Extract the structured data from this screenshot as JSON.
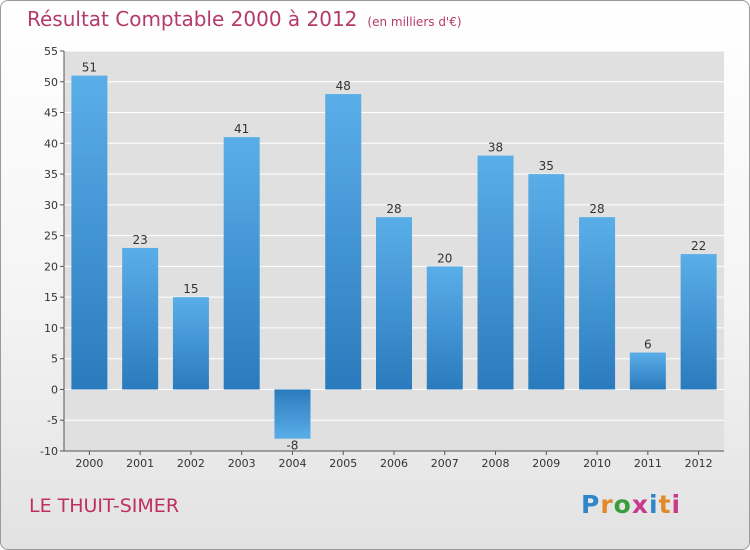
{
  "header": {
    "title": "Résultat Comptable 2000 à 2012",
    "subtitle": "(en milliers d'€)"
  },
  "footer": {
    "town": "LE THUIT-SIMER",
    "logo_text": "Proxiti"
  },
  "colors": {
    "title": "#b43a6a",
    "bar_light": "#5aaee8",
    "bar_dark": "#2a7bbd",
    "plot_bg": "#e0e0e0",
    "grid": "#ffffff"
  },
  "chart_data": {
    "type": "bar",
    "title": "Résultat Comptable 2000 à 2012",
    "subtitle": "(en milliers d'€)",
    "xlabel": "",
    "ylabel": "",
    "categories": [
      "2000",
      "2001",
      "2002",
      "2003",
      "2004",
      "2005",
      "2006",
      "2007",
      "2008",
      "2009",
      "2010",
      "2011",
      "2012"
    ],
    "values": [
      51,
      23,
      15,
      41,
      -8,
      48,
      28,
      20,
      38,
      35,
      28,
      6,
      22
    ],
    "ylim": [
      -10,
      55
    ],
    "yticks": [
      -10,
      -5,
      0,
      5,
      10,
      15,
      20,
      25,
      30,
      35,
      40,
      45,
      50,
      55
    ],
    "grid": true,
    "legend": "none"
  }
}
